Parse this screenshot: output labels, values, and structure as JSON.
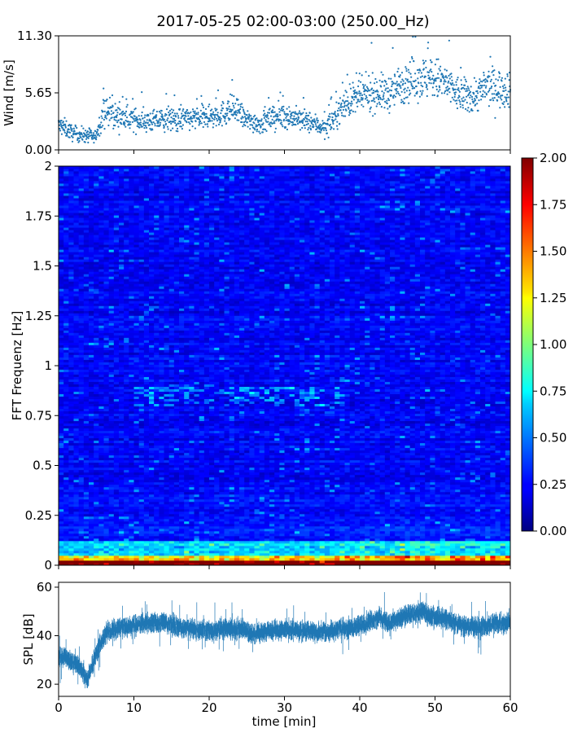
{
  "figure": {
    "title": "2017-05-25 02:00-03:00 (250.00_Hz)"
  },
  "colors": {
    "series": "#1f77b4",
    "colormap": "jet"
  },
  "chart_data": [
    {
      "type": "scatter",
      "name": "wind",
      "ylabel": "Wind [m/s]",
      "xlim": [
        0,
        60
      ],
      "ylim": [
        0,
        11.3
      ],
      "yticks": [
        "0.00",
        "5.65",
        "11.30"
      ],
      "x_ticks_labeled": false,
      "profile": [
        [
          0,
          2.4
        ],
        [
          1,
          2.1
        ],
        [
          2,
          1.6
        ],
        [
          3,
          1.5
        ],
        [
          4,
          1.4
        ],
        [
          4.8,
          1.2
        ],
        [
          5.5,
          2.6
        ],
        [
          6,
          3.8
        ],
        [
          7,
          3.6
        ],
        [
          8,
          3.2
        ],
        [
          10,
          3.0
        ],
        [
          12,
          2.8
        ],
        [
          15,
          3.0
        ],
        [
          18,
          3.1
        ],
        [
          20,
          3.2
        ],
        [
          22,
          3.6
        ],
        [
          23,
          4.1
        ],
        [
          24,
          3.6
        ],
        [
          25,
          2.9
        ],
        [
          27,
          2.6
        ],
        [
          28,
          3.0
        ],
        [
          30,
          3.4
        ],
        [
          32,
          3.0
        ],
        [
          34,
          2.6
        ],
        [
          35.5,
          2.1
        ],
        [
          36.5,
          3.1
        ],
        [
          38,
          4.6
        ],
        [
          40,
          5.3
        ],
        [
          42,
          5.7
        ],
        [
          44,
          5.6
        ],
        [
          46,
          6.8
        ],
        [
          48,
          7.2
        ],
        [
          50,
          7.0
        ],
        [
          51,
          6.8
        ],
        [
          53,
          5.5
        ],
        [
          55,
          5.2
        ],
        [
          57,
          6.3
        ],
        [
          59,
          6.0
        ],
        [
          60,
          6.2
        ]
      ]
    },
    {
      "type": "heatmap",
      "name": "spectrogram",
      "ylabel": "FFT Frequenz [Hz]",
      "xlim": [
        0,
        60
      ],
      "ylim": [
        0,
        2
      ],
      "yticks": [
        "0",
        "0.25",
        "0.5",
        "0.75",
        "1",
        "1.25",
        "1.5",
        "1.75",
        "2"
      ],
      "x_ticks_labeled": false,
      "colorbar": {
        "range": [
          0,
          2
        ],
        "ticks": [
          "0.00",
          "0.25",
          "0.50",
          "0.75",
          "1.00",
          "1.25",
          "1.50",
          "1.75",
          "2.00"
        ]
      }
    },
    {
      "type": "line",
      "name": "spl",
      "ylabel": "SPL [dB]",
      "xlabel": "time [min]",
      "xlim": [
        0,
        60
      ],
      "ylim": [
        15,
        62
      ],
      "yticks": [
        "20",
        "40",
        "60"
      ],
      "xticks": [
        "0",
        "10",
        "20",
        "30",
        "40",
        "50",
        "60"
      ],
      "profile": [
        [
          0,
          32
        ],
        [
          1,
          31
        ],
        [
          2,
          29
        ],
        [
          3,
          26
        ],
        [
          3.8,
          22
        ],
        [
          4.5,
          28
        ],
        [
          5.5,
          36
        ],
        [
          6.5,
          42
        ],
        [
          8,
          43
        ],
        [
          10,
          44.5
        ],
        [
          12,
          45
        ],
        [
          14,
          45.5
        ],
        [
          16,
          43.5
        ],
        [
          18,
          42.5
        ],
        [
          20,
          42
        ],
        [
          22,
          43
        ],
        [
          24,
          42.5
        ],
        [
          26,
          41
        ],
        [
          28,
          42
        ],
        [
          30,
          42.5
        ],
        [
          32,
          42
        ],
        [
          34,
          41.5
        ],
        [
          36,
          42
        ],
        [
          38,
          43
        ],
        [
          40,
          44
        ],
        [
          41.5,
          46
        ],
        [
          42.5,
          47.5
        ],
        [
          44,
          45
        ],
        [
          46,
          48
        ],
        [
          48,
          50
        ],
        [
          49.5,
          48
        ],
        [
          51,
          47.5
        ],
        [
          52,
          46
        ],
        [
          54,
          44
        ],
        [
          56,
          43.5
        ],
        [
          58,
          45
        ],
        [
          60,
          45.5
        ]
      ]
    }
  ]
}
